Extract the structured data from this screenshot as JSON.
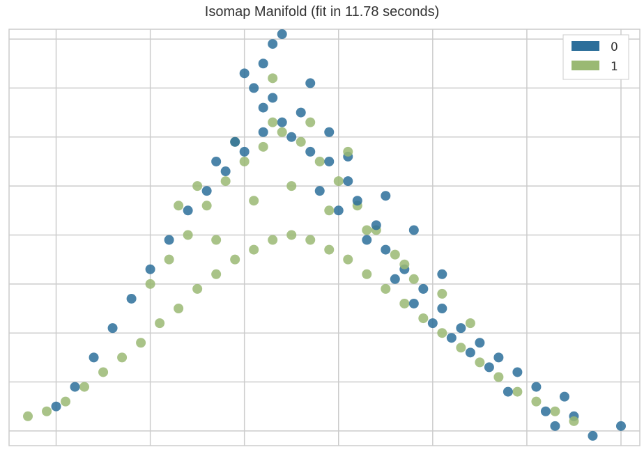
{
  "chart_data": {
    "type": "scatter",
    "title": "Isomap Manifold (fit in 11.78 seconds)",
    "xlabel": "",
    "ylabel": "",
    "xlim": [
      -3.0,
      3.7
    ],
    "ylim": [
      -3.0,
      5.5
    ],
    "xticks": [
      -2.5,
      -1.5,
      -0.5,
      0.5,
      1.5,
      2.5,
      3.5
    ],
    "yticks": [
      -2.7,
      -1.7,
      -0.7,
      0.3,
      1.3,
      2.3,
      3.3,
      4.3,
      5.3
    ],
    "grid": true,
    "tick_labels_visible": false,
    "legend": {
      "position": "top-right",
      "entries": [
        {
          "label": "0",
          "color": "#2c6e9a"
        },
        {
          "label": "1",
          "color": "#9ab973"
        }
      ]
    },
    "series": [
      {
        "name": "0",
        "color": "#2c6e9a",
        "points": [
          [
            3.0,
            -2.4
          ],
          [
            3.2,
            -2.8
          ],
          [
            2.8,
            -2.6
          ],
          [
            3.5,
            -2.6
          ],
          [
            2.9,
            -2.0
          ],
          [
            2.6,
            -1.8
          ],
          [
            2.4,
            -1.5
          ],
          [
            2.2,
            -1.2
          ],
          [
            2.0,
            -0.9
          ],
          [
            2.1,
            -1.4
          ],
          [
            1.8,
            -0.6
          ],
          [
            1.6,
            -0.2
          ],
          [
            1.7,
            -0.8
          ],
          [
            1.4,
            0.2
          ],
          [
            1.2,
            0.6
          ],
          [
            1.0,
            1.0
          ],
          [
            0.9,
            1.5
          ],
          [
            0.7,
            2.0
          ],
          [
            0.6,
            2.4
          ],
          [
            0.4,
            2.8
          ],
          [
            0.2,
            3.0
          ],
          [
            0.0,
            3.3
          ],
          [
            -0.1,
            3.6
          ],
          [
            -0.3,
            3.9
          ],
          [
            -0.4,
            4.3
          ],
          [
            -0.5,
            4.6
          ],
          [
            -0.3,
            4.8
          ],
          [
            -0.2,
            5.2
          ],
          [
            -0.1,
            5.4
          ],
          [
            -0.3,
            3.4
          ],
          [
            -0.5,
            3.0
          ],
          [
            -0.7,
            2.6
          ],
          [
            -0.9,
            2.2
          ],
          [
            -1.1,
            1.8
          ],
          [
            -1.3,
            1.2
          ],
          [
            -1.5,
            0.6
          ],
          [
            -1.7,
            0.0
          ],
          [
            -1.9,
            -0.6
          ],
          [
            -2.1,
            -1.2
          ],
          [
            -2.3,
            -1.8
          ],
          [
            -2.5,
            -2.2
          ],
          [
            0.3,
            2.2
          ],
          [
            0.5,
            1.8
          ],
          [
            0.8,
            1.2
          ],
          [
            1.1,
            0.4
          ],
          [
            1.3,
            -0.1
          ],
          [
            1.5,
            -0.5
          ],
          [
            1.9,
            -1.1
          ],
          [
            2.3,
            -1.9
          ],
          [
            2.7,
            -2.3
          ],
          [
            0.1,
            3.8
          ],
          [
            -0.2,
            4.1
          ],
          [
            0.6,
            2.9
          ],
          [
            1.0,
            2.1
          ],
          [
            1.3,
            1.4
          ],
          [
            1.6,
            0.5
          ],
          [
            0.2,
            4.4
          ],
          [
            -0.6,
            3.2
          ],
          [
            -0.8,
            2.8
          ],
          [
            0.4,
            3.4
          ]
        ]
      },
      {
        "name": "1",
        "color": "#9ab973",
        "points": [
          [
            -2.8,
            -2.4
          ],
          [
            -2.6,
            -2.3
          ],
          [
            -2.4,
            -2.1
          ],
          [
            -2.2,
            -1.8
          ],
          [
            -2.0,
            -1.5
          ],
          [
            -1.8,
            -1.2
          ],
          [
            -1.6,
            -0.9
          ],
          [
            -1.4,
            -0.5
          ],
          [
            -1.2,
            -0.2
          ],
          [
            -1.0,
            0.2
          ],
          [
            -0.8,
            0.5
          ],
          [
            -0.6,
            0.8
          ],
          [
            -0.4,
            1.0
          ],
          [
            -0.2,
            1.2
          ],
          [
            0.0,
            1.3
          ],
          [
            0.2,
            1.2
          ],
          [
            0.4,
            1.0
          ],
          [
            0.6,
            0.8
          ],
          [
            0.8,
            0.5
          ],
          [
            1.0,
            0.2
          ],
          [
            1.2,
            -0.1
          ],
          [
            1.4,
            -0.4
          ],
          [
            1.6,
            -0.7
          ],
          [
            1.8,
            -1.0
          ],
          [
            2.0,
            -1.3
          ],
          [
            2.2,
            -1.6
          ],
          [
            2.4,
            -1.9
          ],
          [
            2.6,
            -2.1
          ],
          [
            2.8,
            -2.3
          ],
          [
            3.0,
            -2.5
          ],
          [
            -1.5,
            0.3
          ],
          [
            -1.3,
            0.8
          ],
          [
            -1.1,
            1.3
          ],
          [
            -0.9,
            1.9
          ],
          [
            -0.7,
            2.4
          ],
          [
            -0.5,
            2.8
          ],
          [
            -0.3,
            3.1
          ],
          [
            -0.1,
            3.4
          ],
          [
            0.1,
            3.2
          ],
          [
            0.3,
            2.8
          ],
          [
            0.5,
            2.4
          ],
          [
            0.7,
            1.9
          ],
          [
            0.9,
            1.4
          ],
          [
            1.1,
            0.9
          ],
          [
            1.3,
            0.4
          ],
          [
            -1.0,
            2.3
          ],
          [
            -0.6,
            3.2
          ],
          [
            -0.2,
            3.6
          ],
          [
            0.2,
            3.6
          ],
          [
            0.6,
            3.0
          ],
          [
            -0.2,
            4.5
          ],
          [
            -1.2,
            1.9
          ],
          [
            1.6,
            0.1
          ],
          [
            1.9,
            -0.5
          ],
          [
            -0.8,
            1.2
          ],
          [
            -0.4,
            2.0
          ],
          [
            0.0,
            2.3
          ],
          [
            0.4,
            1.8
          ],
          [
            0.8,
            1.4
          ],
          [
            1.2,
            0.7
          ]
        ]
      }
    ]
  }
}
